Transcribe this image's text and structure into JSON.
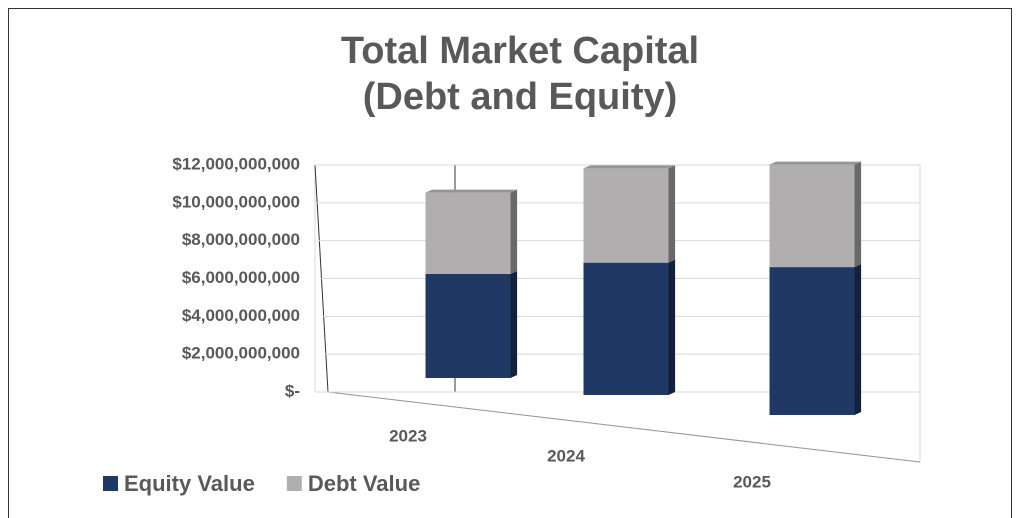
{
  "chart_data": {
    "type": "bar3d_stacked",
    "title": "Total Market Capital (Debt and Equity)",
    "categories": [
      "2023",
      "2024",
      "2025"
    ],
    "series": [
      {
        "name": "Equity Value",
        "color": "#203864",
        "values": [
          5500000000,
          6600000000,
          7000000000
        ]
      },
      {
        "name": "Debt Value",
        "color": "#b0aeae",
        "values": [
          4300000000,
          4700000000,
          4850000000
        ]
      }
    ],
    "ylim": [
      0,
      12000000000
    ],
    "yticks": [
      {
        "value": 0,
        "label": "$-"
      },
      {
        "value": 2000000000,
        "label": "$2,000,000,000"
      },
      {
        "value": 4000000000,
        "label": "$4,000,000,000"
      },
      {
        "value": 6000000000,
        "label": "$6,000,000,000"
      },
      {
        "value": 8000000000,
        "label": "$8,000,000,000"
      },
      {
        "value": 10000000000,
        "label": "$10,000,000,000"
      },
      {
        "value": 12000000000,
        "label": "$12,000,000,000"
      }
    ],
    "grid": true,
    "legend": "bottom-left"
  }
}
